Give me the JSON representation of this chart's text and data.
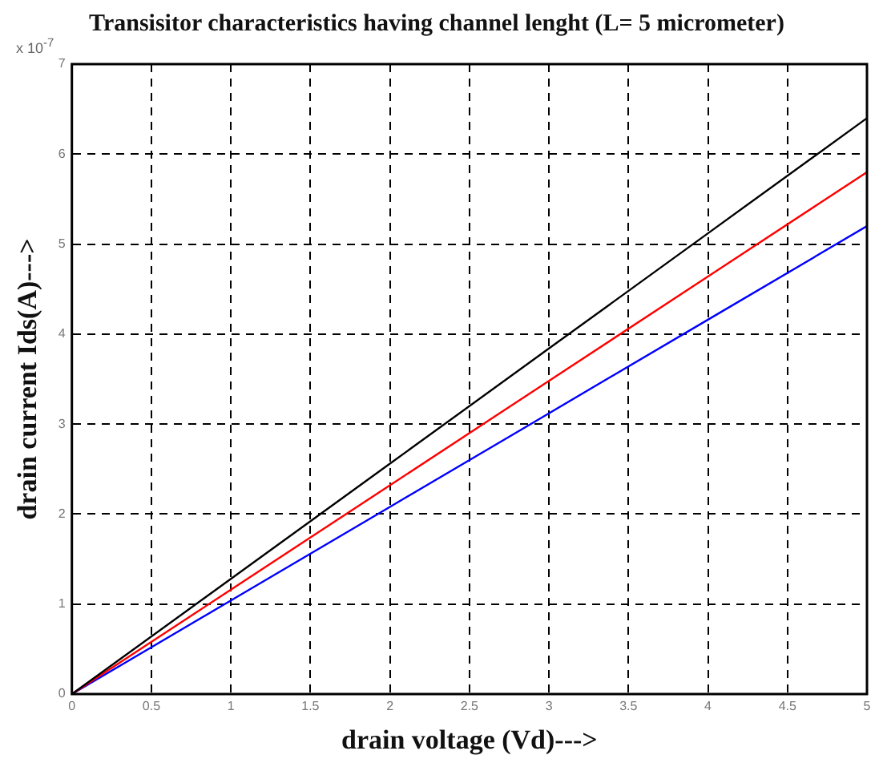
{
  "chart_data": {
    "type": "line",
    "title": "Transisitor characteristics having channel lenght (L= 5 micrometer)",
    "xlabel": "drain voltage (Vd)--->",
    "ylabel": "drain current Ids(A)--->",
    "annotations": [
      "x 10$^{-7}$"
    ],
    "x": [
      0,
      1,
      2,
      3,
      4,
      5
    ],
    "series": [
      {
        "color": "#000000",
        "values": [
          0,
          1.28,
          2.56,
          3.84,
          5.12,
          6.4
        ]
      },
      {
        "color": "#ff0000",
        "values": [
          0,
          1.16,
          2.32,
          3.48,
          4.64,
          5.8
        ]
      },
      {
        "color": "#0000ff",
        "values": [
          0,
          1.04,
          2.08,
          3.12,
          4.16,
          5.2
        ]
      }
    ],
    "xlim": [
      0,
      5
    ],
    "xticks": [
      0,
      0.5,
      1,
      1.5,
      2,
      2.5,
      3,
      3.5,
      4,
      4.5,
      5
    ],
    "ylim": [
      0,
      7
    ],
    "yticks": [
      0,
      1,
      2,
      3,
      4,
      5,
      6,
      7
    ],
    "grid": true,
    "legend": false,
    "marker": "none",
    "line_style": "solid"
  }
}
